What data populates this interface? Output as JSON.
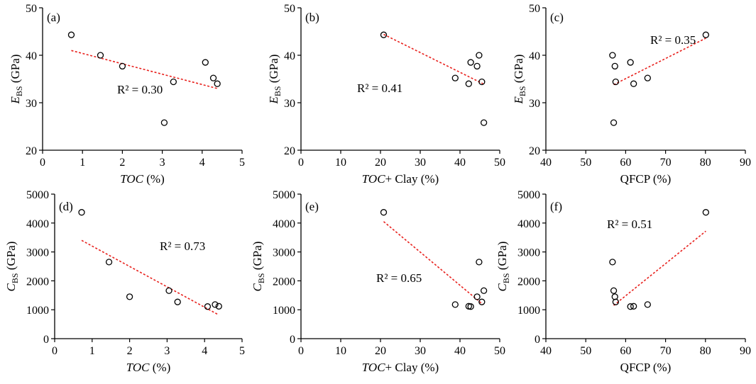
{
  "figure_colors": {
    "axis": "#000000",
    "marker": "#000000",
    "trend": "#e8201c"
  },
  "chart_data": [
    {
      "type": "scatter",
      "panel_label": "(a)",
      "r2_label": "R² = 0.30",
      "ylabel": {
        "main": "E",
        "sub": "BS",
        "unit": " (GPa)"
      },
      "xlabel": {
        "italic": "TOC",
        "rest": " (%)"
      },
      "xlim": [
        0,
        5
      ],
      "ylim": [
        20,
        50
      ],
      "xticks": [
        "0",
        "1",
        "2",
        "3",
        "4",
        "5"
      ],
      "yticks": [
        "20",
        "30",
        "40",
        "50"
      ],
      "x": [
        0.72,
        1.45,
        2.0,
        3.05,
        3.28,
        4.08,
        4.28,
        4.38
      ],
      "y": [
        44.3,
        40.0,
        37.7,
        25.8,
        34.4,
        38.5,
        35.2,
        34.0
      ],
      "trendline": {
        "x": [
          0.72,
          4.38
        ],
        "y": [
          41.0,
          33.0
        ]
      }
    },
    {
      "type": "scatter",
      "panel_label": "(b)",
      "r2_label": "R² = 0.41",
      "ylabel": {
        "main": "E",
        "sub": "BS",
        "unit": " (GPa)"
      },
      "xlabel": {
        "italic": "TOC",
        "rest": "+ Clay (%)"
      },
      "xlim": [
        0,
        50
      ],
      "ylim": [
        20,
        50
      ],
      "xticks": [
        "0",
        "10",
        "20",
        "30",
        "40",
        "50"
      ],
      "yticks": [
        "20",
        "30",
        "40",
        "50"
      ],
      "x": [
        20.8,
        38.8,
        42.2,
        42.7,
        44.3,
        44.8,
        45.5,
        46.0
      ],
      "y": [
        44.3,
        35.2,
        34.0,
        38.5,
        37.7,
        40.0,
        34.4,
        25.8
      ],
      "trendline": {
        "x": [
          20.8,
          45.8
        ],
        "y": [
          44.4,
          34.0
        ]
      }
    },
    {
      "type": "scatter",
      "panel_label": "(c)",
      "r2_label": "R² = 0.35",
      "ylabel": {
        "main": "E",
        "sub": "BS",
        "unit": " (GPa)"
      },
      "xlabel": {
        "italic": "",
        "rest": "QFCP (%)"
      },
      "xlim": [
        40,
        90
      ],
      "ylim": [
        20,
        50
      ],
      "xticks": [
        "40",
        "50",
        "60",
        "70",
        "80",
        "90"
      ],
      "yticks": [
        "20",
        "30",
        "40",
        "50"
      ],
      "x": [
        56.7,
        57.0,
        57.3,
        57.5,
        61.2,
        62.0,
        65.5,
        80.1
      ],
      "y": [
        40.0,
        25.8,
        37.7,
        34.4,
        38.5,
        34.0,
        35.2,
        44.3
      ],
      "trendline": {
        "x": [
          57.0,
          80.1
        ],
        "y": [
          33.8,
          43.6
        ]
      }
    },
    {
      "type": "scatter",
      "panel_label": "(d)",
      "r2_label": "R² = 0.73",
      "ylabel": {
        "main": "C",
        "sub": "BS",
        "unit": " (GPa)"
      },
      "xlabel": {
        "italic": "TOC",
        "rest": " (%)"
      },
      "xlim": [
        0,
        5
      ],
      "ylim": [
        0,
        5000
      ],
      "xticks": [
        "0",
        "1",
        "2",
        "3",
        "4",
        "5"
      ],
      "yticks": [
        "0",
        "1000",
        "2000",
        "3000",
        "4000",
        "5000"
      ],
      "x": [
        0.72,
        1.45,
        2.0,
        3.05,
        3.28,
        4.08,
        4.28,
        4.38
      ],
      "y": [
        4370,
        2650,
        1450,
        1660,
        1270,
        1110,
        1180,
        1120
      ],
      "trendline": {
        "x": [
          0.72,
          4.38
        ],
        "y": [
          3400,
          820
        ]
      }
    },
    {
      "type": "scatter",
      "panel_label": "(e)",
      "r2_label": "R² = 0.65",
      "ylabel": {
        "main": "C",
        "sub": "BS",
        "unit": " (GPa)"
      },
      "xlabel": {
        "italic": "TOC",
        "rest": "+ Clay (%)"
      },
      "xlim": [
        0,
        50
      ],
      "ylim": [
        0,
        5000
      ],
      "xticks": [
        "0",
        "10",
        "20",
        "30",
        "40",
        "50"
      ],
      "yticks": [
        "0",
        "1000",
        "2000",
        "3000",
        "4000",
        "5000"
      ],
      "x": [
        20.8,
        38.8,
        42.2,
        42.7,
        44.3,
        44.8,
        45.5,
        46.0
      ],
      "y": [
        4370,
        1180,
        1120,
        1110,
        1450,
        2650,
        1270,
        1660
      ],
      "trendline": {
        "x": [
          20.8,
          45.8
        ],
        "y": [
          4050,
          1180
        ]
      }
    },
    {
      "type": "scatter",
      "panel_label": "(f)",
      "r2_label": "R² = 0.51",
      "ylabel": {
        "main": "C",
        "sub": "BS",
        "unit": " (GPa)"
      },
      "xlabel": {
        "italic": "",
        "rest": "QFCP (%)"
      },
      "xlim": [
        40,
        90
      ],
      "ylim": [
        0,
        5000
      ],
      "xticks": [
        "40",
        "50",
        "60",
        "70",
        "80",
        "90"
      ],
      "yticks": [
        "0",
        "1000",
        "2000",
        "3000",
        "4000",
        "5000"
      ],
      "x": [
        56.7,
        57.0,
        57.3,
        57.5,
        61.2,
        62.0,
        65.5,
        80.1
      ],
      "y": [
        2650,
        1660,
        1450,
        1270,
        1110,
        1120,
        1180,
        4370
      ],
      "trendline": {
        "x": [
          57.0,
          80.1
        ],
        "y": [
          1150,
          3720
        ]
      }
    }
  ]
}
